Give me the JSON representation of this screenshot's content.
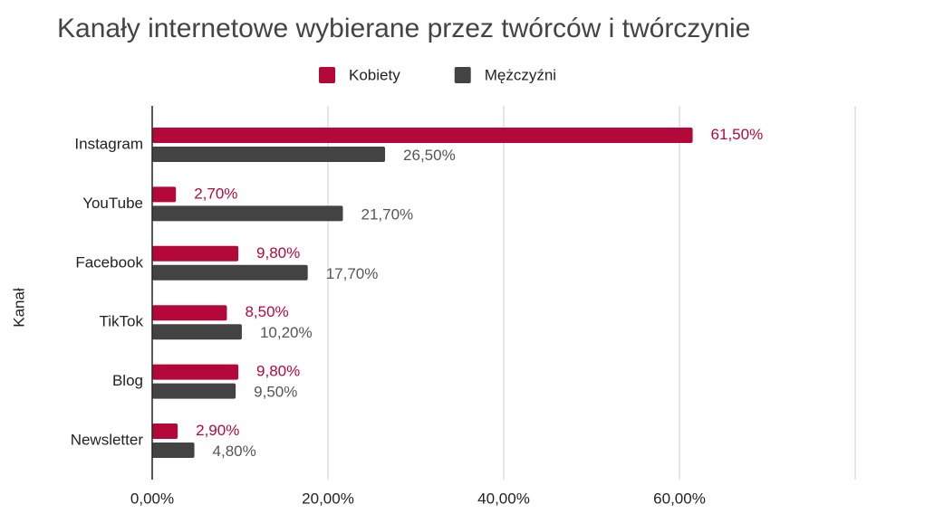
{
  "chart_data": {
    "type": "hbar",
    "title": "Kanały internetowe wybierane przez twórców i twórczynie",
    "y_label": "Kanał",
    "categories": [
      "Instagram",
      "YouTube",
      "Facebook",
      "TikTok",
      "Blog",
      "Newsletter"
    ],
    "series": [
      {
        "name": "Kobiety",
        "color": "#b5083a",
        "values": [
          61.5,
          2.7,
          9.8,
          8.5,
          9.8,
          2.9
        ],
        "value_labels": [
          "61,50%",
          "2,70%",
          "9,80%",
          "8,50%",
          "9,80%",
          "2,90%"
        ]
      },
      {
        "name": "Mężczyźni",
        "color": "#434343",
        "values": [
          26.5,
          21.7,
          17.7,
          10.2,
          9.5,
          4.8
        ],
        "value_labels": [
          "26,50%",
          "21,70%",
          "17,70%",
          "10,20%",
          "9,50%",
          "4,80%"
        ]
      }
    ],
    "xlim": [
      0,
      80
    ],
    "xticks": [
      {
        "value": 0,
        "label": "0,00%"
      },
      {
        "value": 20,
        "label": "20,00%"
      },
      {
        "value": 40,
        "label": "40,00%"
      },
      {
        "value": 60,
        "label": "60,00%"
      }
    ],
    "grid": true
  }
}
